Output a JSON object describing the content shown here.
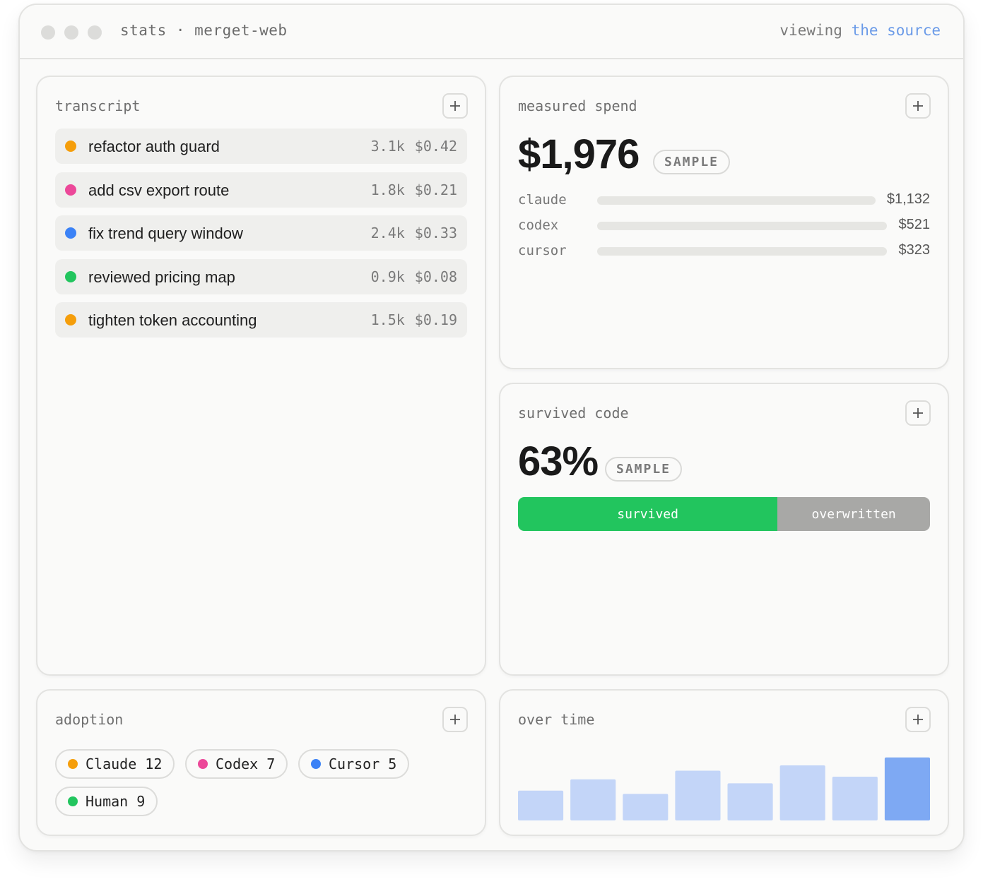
{
  "window": {
    "title": "stats · merget-web",
    "viewing_prefix": "viewing",
    "viewing_link": "the source"
  },
  "transcript": {
    "title": "transcript",
    "items": [
      {
        "label": "refactor auth guard",
        "tokens": "3.1k",
        "cost": "$0.42",
        "color": "#f59e0b"
      },
      {
        "label": "add csv export route",
        "tokens": "1.8k",
        "cost": "$0.21",
        "color": "#ec4899"
      },
      {
        "label": "fix trend query window",
        "tokens": "2.4k",
        "cost": "$0.33",
        "color": "#3b82f6"
      },
      {
        "label": "reviewed pricing map",
        "tokens": "0.9k",
        "cost": "$0.08",
        "color": "#22c55e"
      },
      {
        "label": "tighten token accounting",
        "tokens": "1.5k",
        "cost": "$0.19",
        "color": "#f59e0b"
      }
    ]
  },
  "spend": {
    "title": "measured spend",
    "total": "$1,976",
    "badge": "SAMPLE",
    "rows": [
      {
        "name": "claude",
        "value": "$1,132"
      },
      {
        "name": "codex",
        "value": "$521"
      },
      {
        "name": "cursor",
        "value": "$323"
      }
    ]
  },
  "survived": {
    "title": "survived code",
    "value": "63%",
    "badge": "SAMPLE",
    "survived_label": "survived",
    "overwritten_label": "overwritten",
    "survived_fraction": 0.63,
    "survived_color": "#22c55e",
    "overwritten_color": "#a8a8a6"
  },
  "adoption": {
    "title": "adoption",
    "chips": [
      {
        "label": "Claude 12",
        "color": "#f59e0b"
      },
      {
        "label": "Codex 7",
        "color": "#ec4899"
      },
      {
        "label": "Cursor 5",
        "color": "#3b82f6"
      },
      {
        "label": "Human 9",
        "color": "#22c55e"
      }
    ]
  },
  "over_time": {
    "title": "over time",
    "bar_color": "#c3d5f8",
    "highlight_color": "#7ea9f3"
  },
  "chart_data": {
    "type": "bar",
    "values": [
      45,
      62,
      40,
      75,
      56,
      83,
      66,
      95
    ],
    "highlight_last": true,
    "ylim": [
      0,
      100
    ]
  }
}
